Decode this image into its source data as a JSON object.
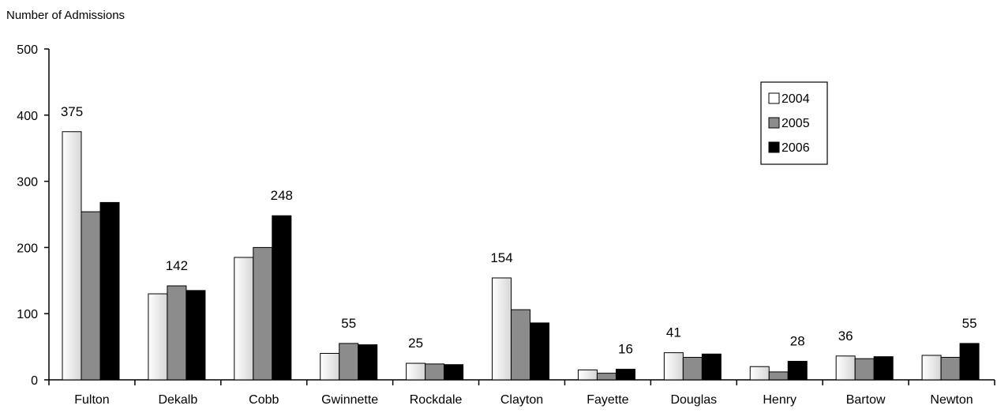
{
  "chart_data": {
    "type": "bar",
    "ylabel": "Number of Admissions",
    "ylim": [
      0,
      500
    ],
    "yticks": [
      0,
      100,
      200,
      300,
      400,
      500
    ],
    "grid": false,
    "legend_position": "top-right",
    "categories": [
      "Fulton",
      "Dekalb",
      "Cobb",
      "Gwinnette",
      "Rockdale",
      "Clayton",
      "Fayette",
      "Douglas",
      "Henry",
      "Bartow",
      "Newton"
    ],
    "series": [
      {
        "name": "2004",
        "color": "#ffffff",
        "values": [
          375,
          130,
          185,
          40,
          25,
          154,
          15,
          41,
          20,
          36,
          37
        ]
      },
      {
        "name": "2005",
        "color": "#8c8c8c",
        "values": [
          254,
          142,
          200,
          55,
          24,
          106,
          10,
          34,
          12,
          32,
          34
        ]
      },
      {
        "name": "2006",
        "color": "#000000",
        "values": [
          268,
          135,
          248,
          53,
          23,
          86,
          16,
          39,
          28,
          35,
          55
        ]
      }
    ],
    "data_labels": [
      {
        "category": "Fulton",
        "series": "2004",
        "text": "375"
      },
      {
        "category": "Dekalb",
        "series": "2005",
        "text": "142"
      },
      {
        "category": "Cobb",
        "series": "2006",
        "text": "248"
      },
      {
        "category": "Gwinnette",
        "series": "2005",
        "text": "55"
      },
      {
        "category": "Rockdale",
        "series": "2004",
        "text": "25"
      },
      {
        "category": "Clayton",
        "series": "2004",
        "text": "154"
      },
      {
        "category": "Fayette",
        "series": "2006",
        "text": "16"
      },
      {
        "category": "Douglas",
        "series": "2004",
        "text": "41"
      },
      {
        "category": "Henry",
        "series": "2006",
        "text": "28"
      },
      {
        "category": "Bartow",
        "series": "2004",
        "text": "36"
      },
      {
        "category": "Newton",
        "series": "2006",
        "text": "55"
      }
    ]
  }
}
